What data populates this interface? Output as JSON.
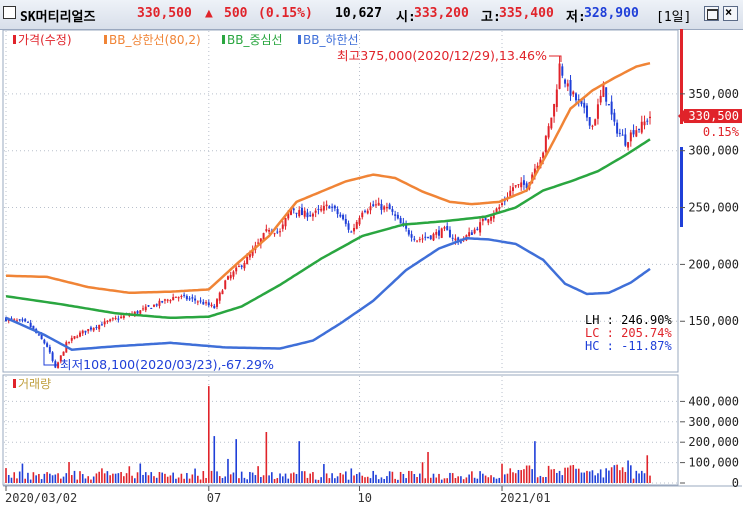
{
  "header": {
    "name": "SK머티리얼즈",
    "price": "330,500",
    "change_arrow": "▲",
    "change": "500",
    "change_pct": "(0.15%)",
    "volume": "10,627",
    "open_label": "시:",
    "open": "333,200",
    "high_label": "고:",
    "high": "335,400",
    "low_label": "저:",
    "low": "328,900",
    "period": "[1일]"
  },
  "legend": {
    "price": "가격(수정)",
    "bb_upper": "BB_상한선(80,2)",
    "bb_mid": "BB_중심선",
    "bb_lower": "BB_하한선",
    "volume": "거래량"
  },
  "colors": {
    "up": "#e0232a",
    "down": "#1f3fd8",
    "bb_upper": "#f08436",
    "bb_mid": "#2aa640",
    "bb_lower": "#3f6fd8"
  },
  "chart_data": [
    {
      "type": "candlestick",
      "title": "",
      "x_ticks": [
        "2020/03/02",
        "07",
        "10",
        "2021/01"
      ],
      "ylim": [
        108000,
        400000
      ],
      "y_ticks": [
        150000,
        200000,
        250000,
        300000,
        350000
      ],
      "y_tick_labels": [
        "150,000",
        "200,000",
        "250,000",
        "300,000",
        "350,000"
      ],
      "current_price": 330500,
      "current_price_label": "330,500",
      "current_pct_label": "0.15%",
      "annotations": {
        "high": "최고375,000(2020/12/29),13.46%",
        "low": "최저108,100(2020/03/23),-67.29%"
      },
      "stats": {
        "LH_label": "LH : 246.90%",
        "LC_label": "LC : 205.74%",
        "HC_label": "HC : -11.87%"
      },
      "close_path": [
        [
          0,
          152000
        ],
        [
          8,
          148000
        ],
        [
          15,
          128000
        ],
        [
          18,
          108100
        ],
        [
          22,
          130000
        ],
        [
          26,
          138000
        ],
        [
          32,
          145000
        ],
        [
          40,
          152000
        ],
        [
          48,
          158000
        ],
        [
          55,
          165000
        ],
        [
          62,
          172000
        ],
        [
          70,
          168000
        ],
        [
          76,
          162000
        ],
        [
          80,
          185000
        ],
        [
          84,
          195000
        ],
        [
          88,
          205000
        ],
        [
          92,
          218000
        ],
        [
          96,
          232000
        ],
        [
          100,
          228000
        ],
        [
          104,
          250000
        ],
        [
          108,
          244000
        ],
        [
          113,
          245000
        ],
        [
          118,
          252000
        ],
        [
          122,
          242000
        ],
        [
          126,
          228000
        ],
        [
          130,
          248000
        ],
        [
          135,
          252000
        ],
        [
          140,
          248000
        ],
        [
          145,
          232000
        ],
        [
          150,
          222000
        ],
        [
          155,
          225000
        ],
        [
          160,
          230000
        ],
        [
          165,
          220000
        ],
        [
          170,
          228000
        ],
        [
          175,
          240000
        ],
        [
          180,
          250000
        ],
        [
          185,
          268000
        ],
        [
          190,
          270000
        ],
        [
          196,
          300000
        ],
        [
          200,
          340000
        ],
        [
          202,
          375000
        ],
        [
          205,
          355000
        ],
        [
          210,
          338000
        ],
        [
          214,
          322000
        ],
        [
          218,
          355000
        ],
        [
          222,
          322000
        ],
        [
          226,
          308000
        ],
        [
          229,
          318000
        ],
        [
          232,
          322000
        ],
        [
          235,
          330500
        ]
      ],
      "bb_upper_path": [
        [
          0,
          190000
        ],
        [
          15,
          189000
        ],
        [
          30,
          180000
        ],
        [
          45,
          175000
        ],
        [
          60,
          176000
        ],
        [
          74,
          178000
        ],
        [
          84,
          200000
        ],
        [
          96,
          225000
        ],
        [
          106,
          255000
        ],
        [
          114,
          263000
        ],
        [
          124,
          273000
        ],
        [
          134,
          279000
        ],
        [
          142,
          276000
        ],
        [
          152,
          264000
        ],
        [
          162,
          255000
        ],
        [
          170,
          253000
        ],
        [
          180,
          255000
        ],
        [
          190,
          265000
        ],
        [
          198,
          300000
        ],
        [
          206,
          337000
        ],
        [
          214,
          353000
        ],
        [
          222,
          364000
        ],
        [
          230,
          374000
        ],
        [
          235,
          377000
        ]
      ],
      "bb_mid_path": [
        [
          0,
          172000
        ],
        [
          20,
          165000
        ],
        [
          40,
          157000
        ],
        [
          60,
          153000
        ],
        [
          74,
          154000
        ],
        [
          86,
          163000
        ],
        [
          100,
          182000
        ],
        [
          115,
          205000
        ],
        [
          130,
          225000
        ],
        [
          145,
          235000
        ],
        [
          160,
          238000
        ],
        [
          175,
          242000
        ],
        [
          186,
          250000
        ],
        [
          196,
          265000
        ],
        [
          206,
          273000
        ],
        [
          216,
          282000
        ],
        [
          226,
          296000
        ],
        [
          235,
          310000
        ]
      ],
      "bb_lower_path": [
        [
          0,
          153000
        ],
        [
          14,
          138000
        ],
        [
          24,
          125000
        ],
        [
          40,
          128000
        ],
        [
          60,
          131000
        ],
        [
          80,
          127000
        ],
        [
          100,
          126000
        ],
        [
          112,
          133000
        ],
        [
          122,
          148000
        ],
        [
          134,
          168000
        ],
        [
          146,
          195000
        ],
        [
          158,
          214000
        ],
        [
          168,
          223000
        ],
        [
          176,
          222000
        ],
        [
          186,
          218000
        ],
        [
          196,
          204000
        ],
        [
          204,
          183000
        ],
        [
          212,
          174000
        ],
        [
          220,
          175000
        ],
        [
          228,
          184000
        ],
        [
          235,
          196000
        ]
      ]
    },
    {
      "type": "bar",
      "title": "",
      "ylabel": "거래량",
      "ylim": [
        0,
        500000
      ],
      "y_ticks": [
        0,
        100000,
        200000,
        300000,
        400000
      ],
      "y_tick_labels": [
        "0",
        "100,000",
        "200,000",
        "300,000",
        "400,000"
      ],
      "spikes": [
        [
          74,
          475000
        ],
        [
          76,
          230000
        ],
        [
          84,
          215000
        ],
        [
          95,
          250000
        ],
        [
          107,
          205000
        ],
        [
          154,
          152000
        ],
        [
          193,
          205000
        ]
      ]
    }
  ]
}
